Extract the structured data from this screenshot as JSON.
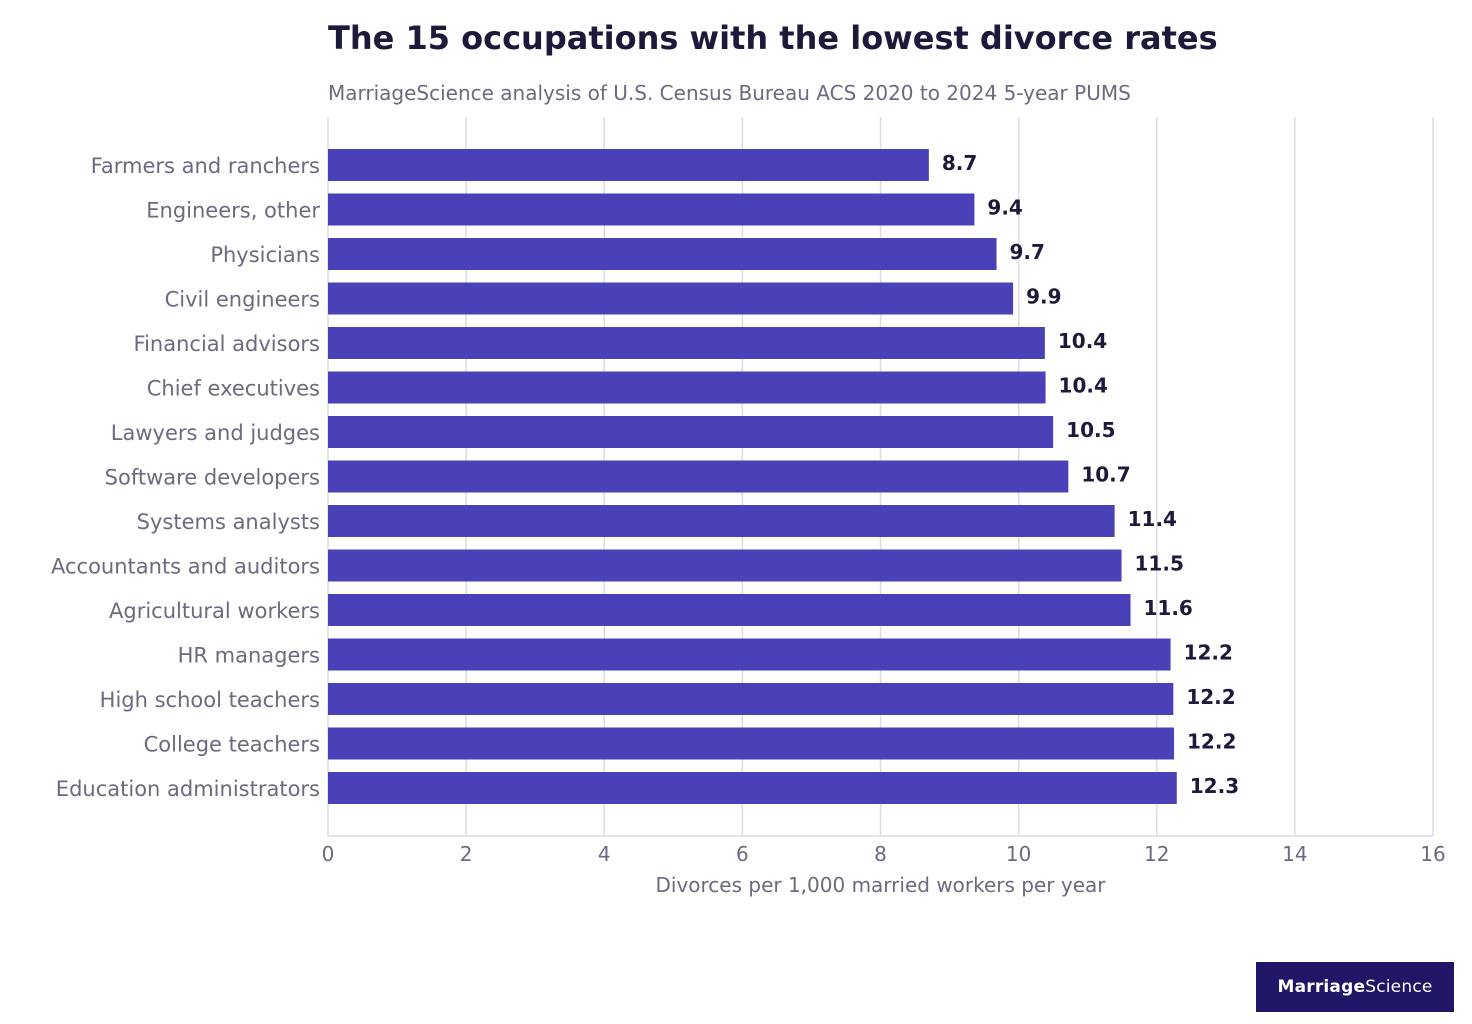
{
  "chart_data": {
    "type": "bar",
    "orientation": "horizontal",
    "title": "The 15 occupations with the lowest divorce rates",
    "subtitle": "MarriageScience analysis of U.S. Census Bureau ACS 2020 to 2024 5-year PUMS",
    "xlabel": "Divorces per 1,000 married workers per year",
    "ylabel": "",
    "xlim": [
      0,
      16
    ],
    "xticks": [
      0,
      2,
      4,
      6,
      8,
      10,
      12,
      14,
      16
    ],
    "grid": "vertical",
    "legend": "none",
    "categories": [
      "Farmers and ranchers",
      "Engineers, other",
      "Physicians",
      "Civil engineers",
      "Financial advisors",
      "Chief executives",
      "Lawyers and judges",
      "Software developers",
      "Systems analysts",
      "Accountants and auditors",
      "Agricultural workers",
      "HR managers",
      "High school teachers",
      "College teachers",
      "Education administrators"
    ],
    "values": [
      8.7,
      9.36,
      9.68,
      9.92,
      10.38,
      10.39,
      10.5,
      10.72,
      11.39,
      11.49,
      11.62,
      12.2,
      12.24,
      12.25,
      12.29
    ],
    "value_labels": [
      "8.7",
      "9.4",
      "9.7",
      "9.9",
      "10.4",
      "10.4",
      "10.5",
      "10.7",
      "11.4",
      "11.5",
      "11.6",
      "12.2",
      "12.2",
      "12.2",
      "12.3"
    ]
  },
  "colors": {
    "bar": "#4a40b7",
    "brand": "#1f1668"
  },
  "logo": {
    "part1": "Marriage",
    "part2": "Science"
  }
}
